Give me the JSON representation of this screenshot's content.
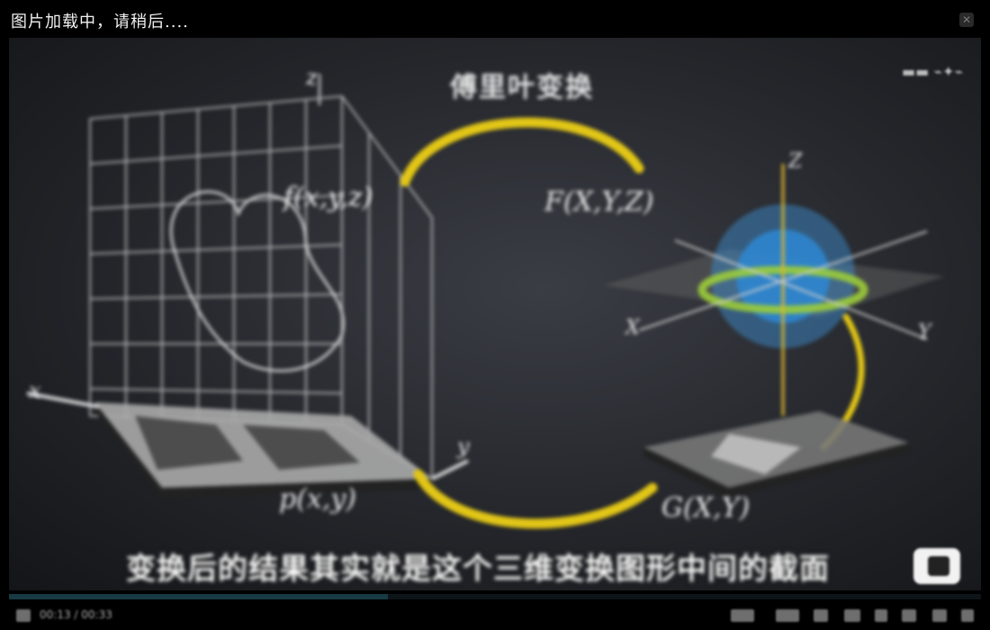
{
  "top_bar": {
    "loading_text": "图片加载中，请稍后....",
    "close_icon": "close-icon"
  },
  "video": {
    "watermark_logo": "logo-icon",
    "overlay_top_label": "傅里叶变换",
    "caption": "变换后的结果其实就是这个三维变换图形中间的截面",
    "equations": {
      "left_function": "f(x,y,z)",
      "right_function": "F(X,Y,Z)",
      "bottom_left": "p(x,y)",
      "bottom_right": "G(X,Y)",
      "axis_z": "z",
      "axis_x": "x",
      "axis_y": "y",
      "axis_right_z": "Z",
      "axis_right_x": "X",
      "axis_right_y": "Y"
    },
    "colors": {
      "arc": "#e2c617",
      "sphere": "#3e93d6",
      "ring": "#9ccc3a"
    }
  },
  "player": {
    "progress": 0.39,
    "time_text": "00:13 / 00:33",
    "controls": [
      "settings-icon",
      "speed-icon",
      "subtitle-icon",
      "volume-icon",
      "pip-icon",
      "fullscreen-icon"
    ]
  }
}
